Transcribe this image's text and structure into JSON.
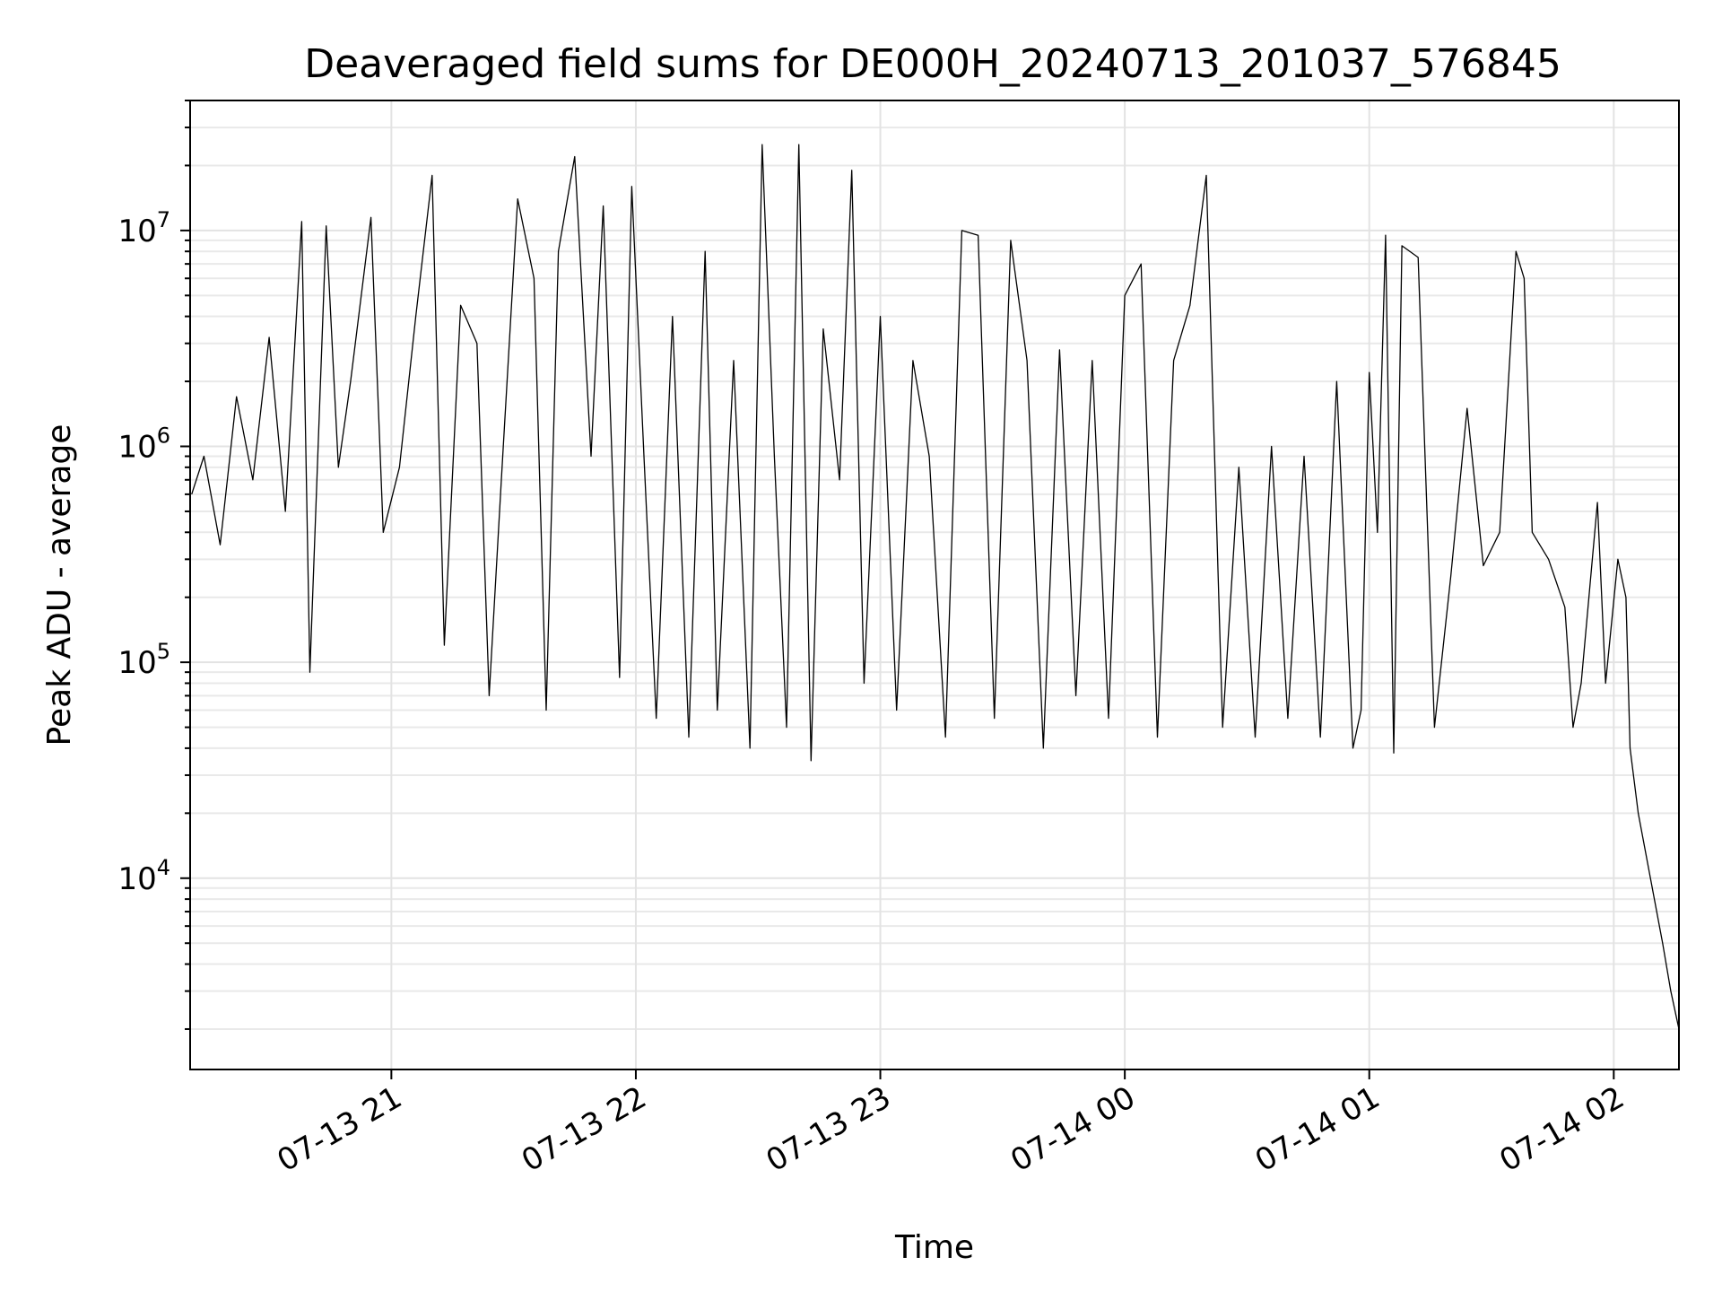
{
  "chart_data": {
    "type": "line",
    "title": "Deaveraged field sums for DE000H_20240713_201037_576845",
    "xlabel": "Time",
    "ylabel": "Peak ADU - average",
    "yscale": "log",
    "x_range": [
      "2024-07-13 20:10:37",
      "2024-07-14 02:16:00"
    ],
    "ylim": [
      1300,
      40000000
    ],
    "grid": true,
    "legend": "none",
    "line_color": "#000000",
    "x_ticks": [
      {
        "time": "2024-07-13 21:00",
        "label": "07-13 21"
      },
      {
        "time": "2024-07-13 22:00",
        "label": "07-13 22"
      },
      {
        "time": "2024-07-13 23:00",
        "label": "07-13 23"
      },
      {
        "time": "2024-07-14 00:00",
        "label": "07-14 00"
      },
      {
        "time": "2024-07-14 01:00",
        "label": "07-14 01"
      },
      {
        "time": "2024-07-14 02:00",
        "label": "07-14 02"
      }
    ],
    "y_ticks": [
      {
        "value": 10000,
        "base": "10",
        "exp": "4"
      },
      {
        "value": 100000,
        "base": "10",
        "exp": "5"
      },
      {
        "value": 1000000,
        "base": "10",
        "exp": "6"
      },
      {
        "value": 10000000,
        "base": "10",
        "exp": "7"
      }
    ],
    "series": [
      {
        "points": [
          [
            "2024-07-13 20:11",
            600000
          ],
          [
            "2024-07-13 20:14",
            900000
          ],
          [
            "2024-07-13 20:18",
            350000
          ],
          [
            "2024-07-13 20:22",
            1700000
          ],
          [
            "2024-07-13 20:26",
            700000
          ],
          [
            "2024-07-13 20:30",
            3200000
          ],
          [
            "2024-07-13 20:34",
            500000
          ],
          [
            "2024-07-13 20:38",
            11000000
          ],
          [
            "2024-07-13 20:40",
            90000
          ],
          [
            "2024-07-13 20:44",
            10500000
          ],
          [
            "2024-07-13 20:47",
            800000
          ],
          [
            "2024-07-13 20:50",
            2000000
          ],
          [
            "2024-07-13 20:55",
            11500000
          ],
          [
            "2024-07-13 20:58",
            400000
          ],
          [
            "2024-07-13 21:02",
            800000
          ],
          [
            "2024-07-13 21:06",
            4000000
          ],
          [
            "2024-07-13 21:10",
            18000000
          ],
          [
            "2024-07-13 21:13",
            120000
          ],
          [
            "2024-07-13 21:17",
            4500000
          ],
          [
            "2024-07-13 21:21",
            3000000
          ],
          [
            "2024-07-13 21:24",
            70000
          ],
          [
            "2024-07-13 21:27",
            700000
          ],
          [
            "2024-07-13 21:31",
            14000000
          ],
          [
            "2024-07-13 21:35",
            6000000
          ],
          [
            "2024-07-13 21:38",
            60000
          ],
          [
            "2024-07-13 21:41",
            8000000
          ],
          [
            "2024-07-13 21:45",
            22000000
          ],
          [
            "2024-07-13 21:49",
            900000
          ],
          [
            "2024-07-13 21:52",
            13000000
          ],
          [
            "2024-07-13 21:56",
            85000
          ],
          [
            "2024-07-13 21:59",
            16000000
          ],
          [
            "2024-07-13 22:02",
            900000
          ],
          [
            "2024-07-13 22:05",
            55000
          ],
          [
            "2024-07-13 22:09",
            4000000
          ],
          [
            "2024-07-13 22:13",
            45000
          ],
          [
            "2024-07-13 22:17",
            8000000
          ],
          [
            "2024-07-13 22:20",
            60000
          ],
          [
            "2024-07-13 22:24",
            2500000
          ],
          [
            "2024-07-13 22:28",
            40000
          ],
          [
            "2024-07-13 22:31",
            25000000
          ],
          [
            "2024-07-13 22:34",
            900000
          ],
          [
            "2024-07-13 22:37",
            50000
          ],
          [
            "2024-07-13 22:40",
            25000000
          ],
          [
            "2024-07-13 22:43",
            35000
          ],
          [
            "2024-07-13 22:46",
            3500000
          ],
          [
            "2024-07-13 22:50",
            700000
          ],
          [
            "2024-07-13 22:53",
            19000000
          ],
          [
            "2024-07-13 22:56",
            80000
          ],
          [
            "2024-07-13 23:00",
            4000000
          ],
          [
            "2024-07-13 23:04",
            60000
          ],
          [
            "2024-07-13 23:08",
            2500000
          ],
          [
            "2024-07-13 23:12",
            900000
          ],
          [
            "2024-07-13 23:16",
            45000
          ],
          [
            "2024-07-13 23:20",
            10000000
          ],
          [
            "2024-07-13 23:24",
            9500000
          ],
          [
            "2024-07-13 23:28",
            55000
          ],
          [
            "2024-07-13 23:32",
            9000000
          ],
          [
            "2024-07-13 23:36",
            2500000
          ],
          [
            "2024-07-13 23:40",
            40000
          ],
          [
            "2024-07-13 23:44",
            2800000
          ],
          [
            "2024-07-13 23:48",
            70000
          ],
          [
            "2024-07-13 23:52",
            2500000
          ],
          [
            "2024-07-13 23:56",
            55000
          ],
          [
            "2024-07-14 00:00",
            5000000
          ],
          [
            "2024-07-14 00:04",
            7000000
          ],
          [
            "2024-07-14 00:08",
            45000
          ],
          [
            "2024-07-14 00:12",
            2500000
          ],
          [
            "2024-07-14 00:16",
            4500000
          ],
          [
            "2024-07-14 00:20",
            18000000
          ],
          [
            "2024-07-14 00:24",
            50000
          ],
          [
            "2024-07-14 00:28",
            800000
          ],
          [
            "2024-07-14 00:32",
            45000
          ],
          [
            "2024-07-14 00:36",
            1000000
          ],
          [
            "2024-07-14 00:40",
            55000
          ],
          [
            "2024-07-14 00:44",
            900000
          ],
          [
            "2024-07-14 00:48",
            45000
          ],
          [
            "2024-07-14 00:52",
            2000000
          ],
          [
            "2024-07-14 00:56",
            40000
          ],
          [
            "2024-07-14 00:58",
            60000
          ],
          [
            "2024-07-14 01:00",
            2200000
          ],
          [
            "2024-07-14 01:02",
            400000
          ],
          [
            "2024-07-14 01:04",
            9500000
          ],
          [
            "2024-07-14 01:06",
            38000
          ],
          [
            "2024-07-14 01:08",
            8500000
          ],
          [
            "2024-07-14 01:12",
            7500000
          ],
          [
            "2024-07-14 01:16",
            50000
          ],
          [
            "2024-07-14 01:20",
            250000
          ],
          [
            "2024-07-14 01:24",
            1500000
          ],
          [
            "2024-07-14 01:28",
            280000
          ],
          [
            "2024-07-14 01:32",
            400000
          ],
          [
            "2024-07-14 01:36",
            8000000
          ],
          [
            "2024-07-14 01:38",
            6000000
          ],
          [
            "2024-07-14 01:40",
            400000
          ],
          [
            "2024-07-14 01:44",
            300000
          ],
          [
            "2024-07-14 01:48",
            180000
          ],
          [
            "2024-07-14 01:50",
            50000
          ],
          [
            "2024-07-14 01:52",
            80000
          ],
          [
            "2024-07-14 01:56",
            550000
          ],
          [
            "2024-07-14 01:58",
            80000
          ],
          [
            "2024-07-14 02:01",
            300000
          ],
          [
            "2024-07-14 02:03",
            200000
          ],
          [
            "2024-07-14 02:04",
            40000
          ],
          [
            "2024-07-14 02:06",
            20000
          ],
          [
            "2024-07-14 02:09",
            10000
          ],
          [
            "2024-07-14 02:12",
            5000
          ],
          [
            "2024-07-14 02:14",
            3000
          ],
          [
            "2024-07-14 02:16",
            2000
          ]
        ]
      }
    ]
  }
}
